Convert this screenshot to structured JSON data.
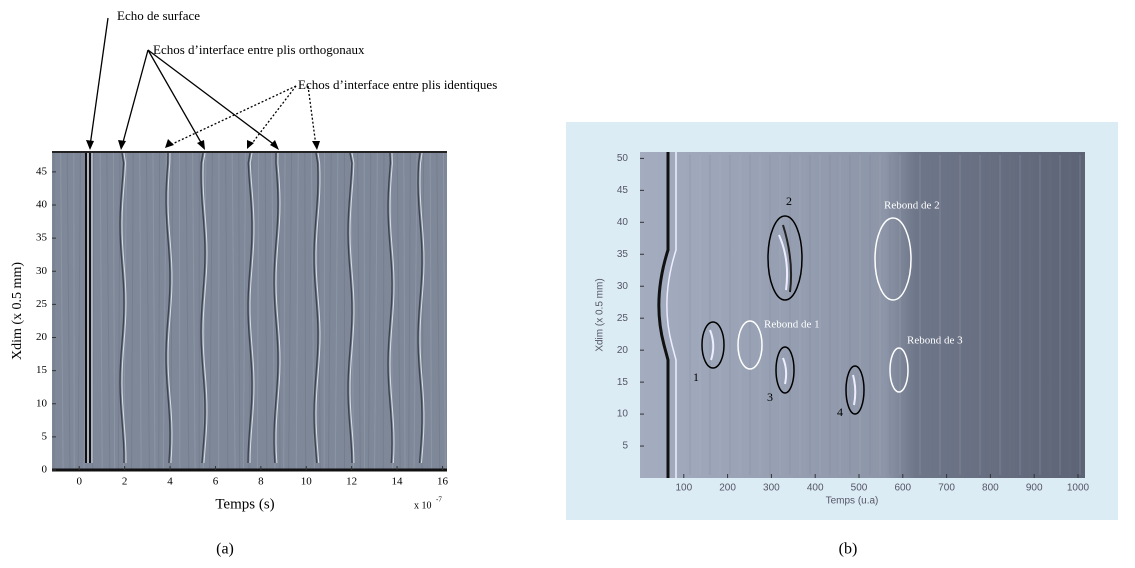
{
  "panel_a": {
    "annotations": [
      "Echo de surface",
      "Echos d’interface entre plis orthogonaux",
      "Echos d’interface entre plis identiques"
    ],
    "y_label": "Xdim (x 0.5 mm)",
    "x_label": "Temps (s)",
    "x_multiplier": "x 10",
    "x_exponent": "-7",
    "xlim": [
      -1.2,
      16.2
    ],
    "ylim": [
      0,
      48
    ],
    "xticks": [
      0,
      2,
      4,
      6,
      8,
      10,
      12,
      14,
      16
    ],
    "yticks": [
      0,
      5,
      10,
      15,
      20,
      25,
      30,
      35,
      40,
      45
    ],
    "caption": "(a)"
  },
  "panel_b": {
    "y_label": "Xdim (x 0.5 mm)",
    "x_label": "Temps (u.a)",
    "xlim": [
      0,
      1016
    ],
    "ylim": [
      0,
      51
    ],
    "xticks": [
      100,
      200,
      300,
      400,
      500,
      600,
      700,
      800,
      900,
      1000
    ],
    "yticks": [
      5,
      10,
      15,
      20,
      25,
      30,
      35,
      40,
      45,
      50
    ],
    "defects": [
      "1",
      "2",
      "3",
      "4"
    ],
    "rebounds": [
      "Rebond de 1",
      "Rebond de 2",
      "Rebond de 3"
    ],
    "caption": "(b)"
  }
}
